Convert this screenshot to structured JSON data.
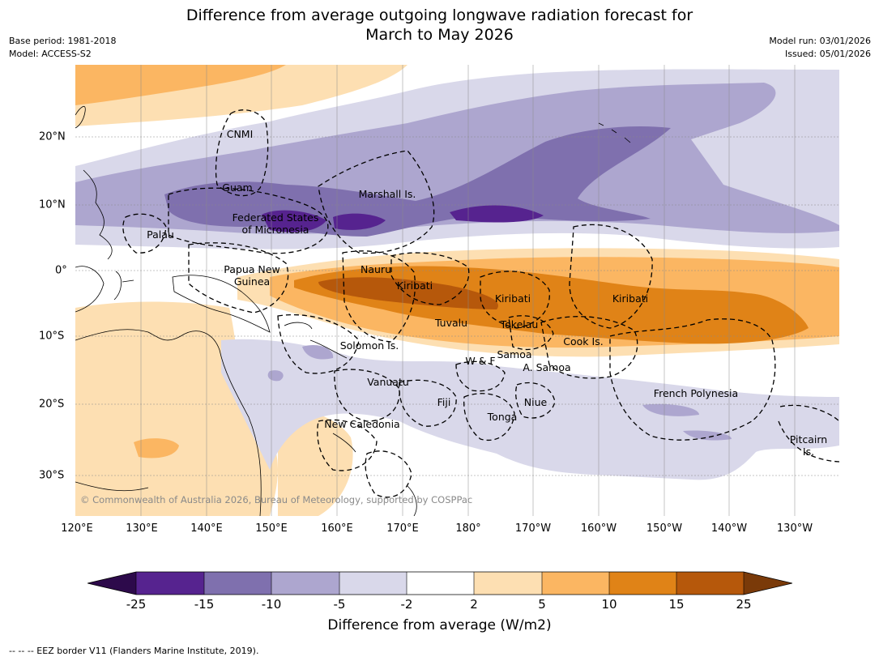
{
  "title": {
    "line1": "Difference from average outgoing longwave radiation forecast for",
    "line2": "March to May 2026"
  },
  "meta": {
    "base_period": "Base period: 1981-2018",
    "model": "Model: ACCESS-S2",
    "model_run": "Model run: 03/01/2026",
    "issued": "Issued: 05/01/2026"
  },
  "map": {
    "lon_labels": [
      "120°E",
      "130°E",
      "140°E",
      "150°E",
      "160°E",
      "170°E",
      "180°",
      "170°W",
      "160°W",
      "150°W",
      "140°W",
      "130°W"
    ],
    "lat_labels": [
      "20°N",
      "10°N",
      "0°",
      "10°S",
      "20°S",
      "30°S"
    ],
    "regions": {
      "cnmi": "CNMI",
      "guam": "Guam",
      "marshall": "Marshall Is.",
      "fsm1": "Federated States",
      "fsm2": "of Micronesia",
      "palau": "Palau",
      "png1": "Papua New",
      "png2": "Guinea",
      "nauru": "Nauru",
      "kiribati_w": "Kiribati",
      "kiribati_c": "Kiribati",
      "kiribati_e": "Kiribati",
      "tuvalu": "Tuvalu",
      "tokelau": "Tokelau",
      "cook": "Cook Is.",
      "solomon": "Solomon Is.",
      "wf": "W & F",
      "samoa": "Samoa",
      "asamoa": "A. Samoa",
      "vanuatu": "Vanuatu",
      "fiji": "Fiji",
      "niue": "Niue",
      "tonga": "Tonga",
      "frenchpoly": "French Polynesia",
      "pitcairn1": "Pitcairn",
      "pitcairn2": "Is.",
      "newcal": "New Caledonia"
    },
    "copyright": "© Commonwealth of Australia 2026, Bureau of Meteorology, supported by COSPPac"
  },
  "colorbar": {
    "ticks": [
      "-25",
      "-15",
      "-10",
      "-5",
      "-2",
      "2",
      "5",
      "10",
      "15",
      "25"
    ],
    "colors": [
      "#2d0a4b",
      "#56238f",
      "#7f70ae",
      "#ada6cf",
      "#d9d8ea",
      "#ffffff",
      "#fddfb2",
      "#fbb662",
      "#e08317",
      "#b6580b",
      "#7a3a09"
    ],
    "label": "Difference from average (W/m2)"
  },
  "footnote": "--  --  -- EEZ border V11 (Flanders Marine Institute, 2019)."
}
